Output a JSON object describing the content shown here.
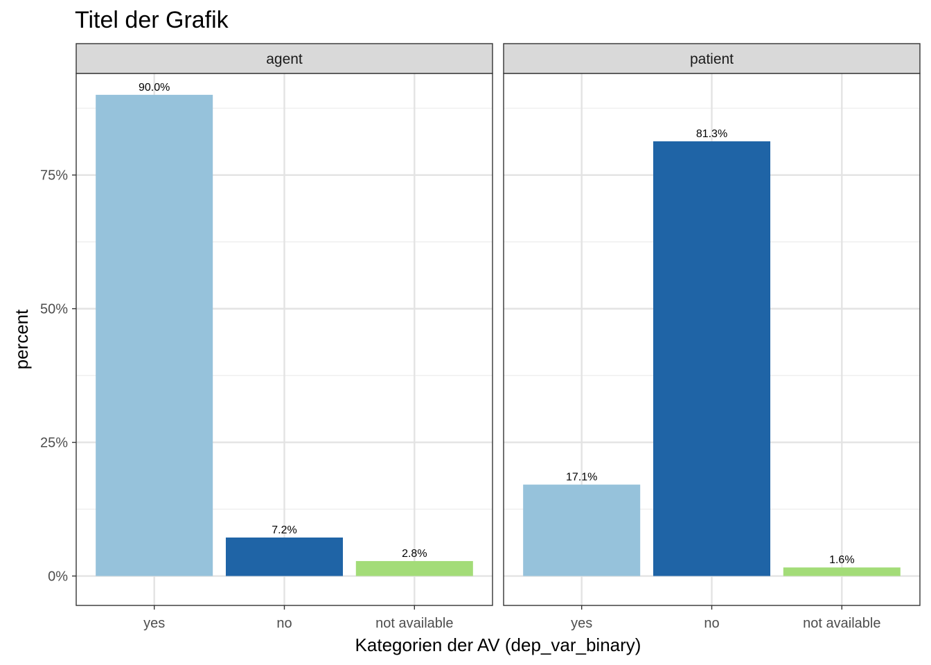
{
  "chart_data": {
    "type": "bar",
    "title": "Titel der Grafik",
    "xlabel": "Kategorien der AV (dep_var_binary)",
    "ylabel": "percent",
    "categories": [
      "yes",
      "no",
      "not available"
    ],
    "colors": {
      "yes": "#96c2db",
      "no": "#1f64a6",
      "not available": "#a3dc78"
    },
    "ylim": [
      -0.055,
      0.94
    ],
    "yticks": [
      0,
      0.25,
      0.5,
      0.75
    ],
    "ytick_labels": [
      "0%",
      "25%",
      "50%",
      "75%"
    ],
    "grid": true,
    "legend": "none",
    "facets": [
      {
        "name": "agent",
        "values": [
          0.9,
          0.072,
          0.028
        ],
        "labels": [
          "90.0%",
          "7.2%",
          "2.8%"
        ]
      },
      {
        "name": "patient",
        "values": [
          0.171,
          0.813,
          0.016
        ],
        "labels": [
          "17.1%",
          "81.3%",
          "1.6%"
        ]
      }
    ]
  }
}
